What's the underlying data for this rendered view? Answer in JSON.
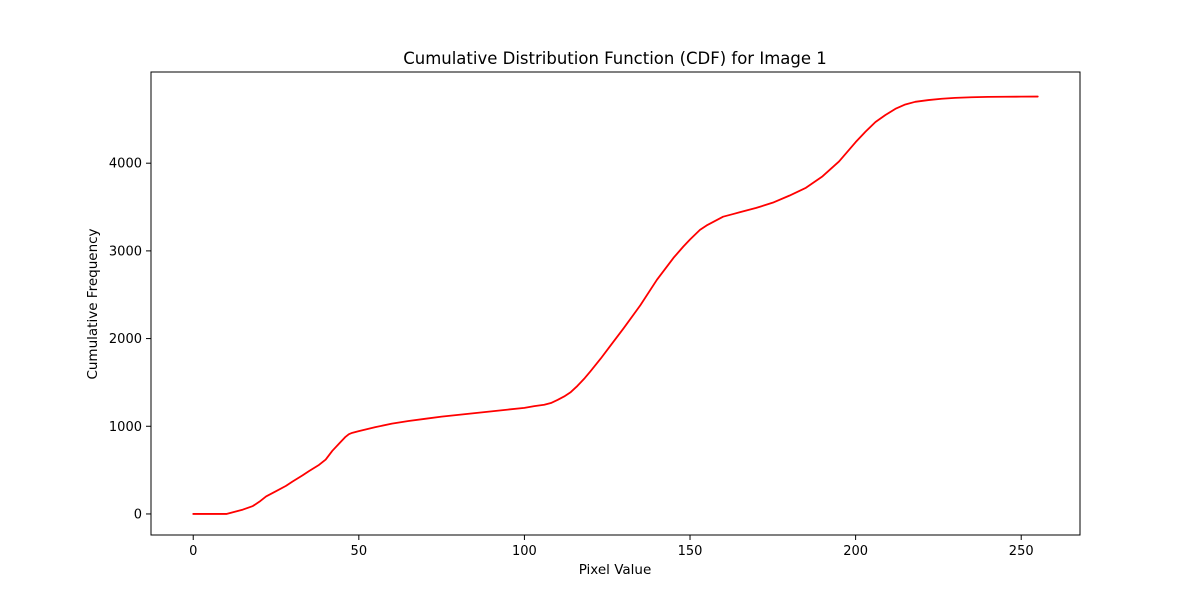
{
  "chart_data": {
    "type": "line",
    "title": "Cumulative Distribution Function (CDF) for Image 1",
    "xlabel": "Pixel Value",
    "ylabel": "Cumulative Frequency",
    "xlim": [
      -12.75,
      267.75
    ],
    "ylim": [
      -240,
      5040
    ],
    "x_ticks": [
      0,
      50,
      100,
      150,
      200,
      250
    ],
    "x_tick_labels": [
      "0",
      "50",
      "100",
      "150",
      "200",
      "250"
    ],
    "y_ticks": [
      0,
      1000,
      2000,
      3000,
      4000
    ],
    "y_tick_labels": [
      "0",
      "1000",
      "2000",
      "3000",
      "4000"
    ],
    "grid": false,
    "legend": "none",
    "series": [
      {
        "color": "#ff0000",
        "x": [
          0,
          5,
          10,
          13,
          15,
          18,
          20,
          22,
          25,
          28,
          30,
          33,
          35,
          38,
          40,
          42,
          44,
          46,
          47,
          48,
          50,
          55,
          60,
          65,
          70,
          75,
          80,
          85,
          90,
          95,
          100,
          103,
          106,
          108,
          110,
          112,
          114,
          116,
          118,
          120,
          123,
          126,
          130,
          135,
          140,
          145,
          148,
          150,
          153,
          155,
          158,
          160,
          163,
          165,
          170,
          175,
          180,
          185,
          190,
          195,
          200,
          203,
          206,
          209,
          212,
          215,
          218,
          222,
          226,
          230,
          235,
          240,
          245,
          250,
          255
        ],
        "y": [
          0,
          0,
          0,
          30,
          50,
          90,
          140,
          200,
          260,
          320,
          370,
          440,
          490,
          560,
          620,
          720,
          800,
          880,
          910,
          925,
          945,
          990,
          1030,
          1060,
          1085,
          1110,
          1130,
          1150,
          1170,
          1190,
          1210,
          1230,
          1245,
          1265,
          1300,
          1340,
          1390,
          1460,
          1540,
          1630,
          1770,
          1920,
          2120,
          2380,
          2670,
          2920,
          3050,
          3130,
          3240,
          3290,
          3350,
          3390,
          3420,
          3440,
          3490,
          3550,
          3630,
          3720,
          3850,
          4020,
          4240,
          4360,
          4470,
          4550,
          4620,
          4670,
          4700,
          4720,
          4735,
          4745,
          4752,
          4756,
          4758,
          4759,
          4760
        ]
      }
    ]
  }
}
